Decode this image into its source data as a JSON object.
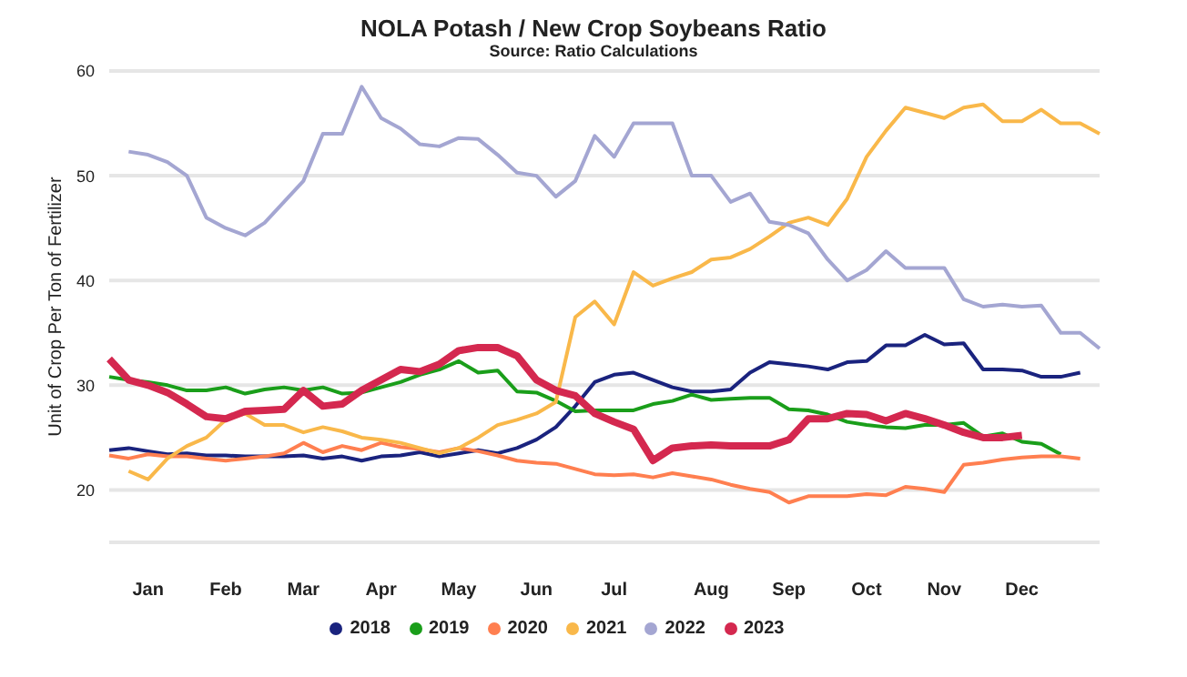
{
  "chart_data": {
    "type": "line",
    "title": "NOLA Potash / New Crop Soybeans Ratio",
    "subtitle": "Source: Ratio Calculations",
    "ylabel": "Unit of Crop Per Ton of Fertilizer",
    "categories": [
      null,
      null,
      "Jan",
      null,
      null,
      null,
      "Feb",
      null,
      null,
      null,
      "Mar",
      null,
      null,
      null,
      "Apr",
      null,
      null,
      null,
      "May",
      null,
      null,
      null,
      "Jun",
      null,
      null,
      null,
      "Jul",
      null,
      null,
      null,
      null,
      "Aug",
      null,
      null,
      null,
      "Sep",
      null,
      null,
      null,
      "Oct",
      null,
      null,
      null,
      "Nov",
      null,
      null,
      null,
      "Dec",
      null,
      null,
      null,
      null
    ],
    "ylim": [
      15,
      60
    ],
    "yticks": [
      20,
      30,
      40,
      50,
      60
    ],
    "grid": "y",
    "legend": "bottom",
    "marker": "none",
    "line_style": "solid",
    "series": [
      {
        "name": "2018",
        "color": "#1a237e",
        "values": [
          23.8,
          24,
          23.7,
          23.4,
          23.5,
          23.3,
          23.3,
          23.2,
          23.2,
          23.2,
          23.3,
          23,
          23.2,
          22.8,
          23.2,
          23.3,
          23.6,
          23.2,
          23.5,
          23.8,
          23.5,
          24,
          24.8,
          26,
          28,
          30.3,
          31,
          31.2,
          30.5,
          29.8,
          29.4,
          29.4,
          29.6,
          31.2,
          32.2,
          32,
          31.8,
          31.5,
          32.2,
          32.3,
          33.8,
          33.8,
          34.8,
          33.9,
          34,
          31.5,
          31.5,
          31.4,
          30.8,
          30.8,
          31.2,
          null
        ]
      },
      {
        "name": "2019",
        "color": "#1a9e1a",
        "values": [
          30.8,
          30.5,
          30.3,
          30,
          29.5,
          29.5,
          29.8,
          29.2,
          29.6,
          29.8,
          29.5,
          29.8,
          29.2,
          29.3,
          29.8,
          30.3,
          31,
          31.5,
          32.3,
          31.2,
          31.4,
          29.4,
          29.3,
          28.5,
          27.5,
          27.6,
          27.6,
          27.6,
          28.2,
          28.5,
          29.1,
          28.6,
          28.7,
          28.8,
          28.8,
          27.7,
          27.6,
          27.2,
          26.5,
          26.2,
          26,
          25.9,
          26.2,
          26.2,
          26.4,
          25.1,
          25.4,
          24.6,
          24.4,
          23.4,
          null,
          null
        ]
      },
      {
        "name": "2020",
        "color": "#ff7f50",
        "values": [
          23.3,
          23,
          23.4,
          23.2,
          23.2,
          23,
          22.8,
          23,
          23.2,
          23.5,
          24.5,
          23.6,
          24.2,
          23.8,
          24.5,
          24.1,
          23.9,
          23.6,
          24,
          23.7,
          23.3,
          22.8,
          22.6,
          22.5,
          22,
          21.5,
          21.4,
          21.5,
          21.2,
          21.6,
          21.3,
          21,
          20.5,
          20.1,
          19.8,
          18.8,
          19.4,
          19.4,
          19.4,
          19.6,
          19.5,
          20.3,
          20.1,
          19.8,
          22.4,
          22.6,
          22.9,
          23.1,
          23.2,
          23.2,
          23,
          null
        ]
      },
      {
        "name": "2021",
        "color": "#f9b84a",
        "values": [
          null,
          21.8,
          21,
          23,
          24.2,
          25,
          26.7,
          27.3,
          26.2,
          26.2,
          25.5,
          26,
          25.6,
          25,
          24.8,
          24.5,
          24,
          23.5,
          24,
          25,
          26.2,
          26.7,
          27.3,
          28.4,
          36.5,
          38,
          35.8,
          40.8,
          39.5,
          40.2,
          40.8,
          42,
          42.2,
          43,
          44.2,
          45.5,
          46,
          45.3,
          47.8,
          51.8,
          54.3,
          56.5,
          56,
          55.5,
          56.5,
          56.8,
          55.2,
          55.2,
          56.3,
          55,
          55,
          54
        ]
      },
      {
        "name": "2022",
        "color": "#a4a6d2",
        "values": [
          null,
          52.3,
          52,
          51.3,
          50,
          46,
          45,
          44.3,
          45.5,
          47.5,
          49.5,
          54,
          54,
          58.5,
          55.5,
          54.5,
          53,
          52.8,
          53.6,
          53.5,
          52,
          50.3,
          50,
          48,
          49.5,
          53.8,
          51.8,
          55,
          55,
          55,
          50,
          50,
          47.5,
          48.3,
          45.6,
          45.3,
          44.5,
          42,
          40,
          41,
          42.8,
          41.2,
          41.2,
          41.2,
          38.2,
          37.5,
          37.7,
          37.5,
          37.6,
          35,
          35,
          33.5
        ]
      },
      {
        "name": "2023",
        "color": "#d4284f",
        "values": [
          32.5,
          30.5,
          30,
          29.3,
          28.2,
          27,
          26.8,
          27.5,
          27.6,
          27.7,
          29.5,
          28,
          28.2,
          29.5,
          30.5,
          31.5,
          31.3,
          32,
          33.3,
          33.6,
          33.6,
          32.8,
          30.5,
          29.5,
          29,
          27.3,
          26.5,
          25.8,
          22.8,
          24,
          24.2,
          24.3,
          24.2,
          24.2,
          24.2,
          24.8,
          26.8,
          26.8,
          27.3,
          27.2,
          26.6,
          27.3,
          26.8,
          26.2,
          25.5,
          25,
          25,
          25.2,
          null,
          null,
          null,
          null
        ]
      }
    ]
  }
}
